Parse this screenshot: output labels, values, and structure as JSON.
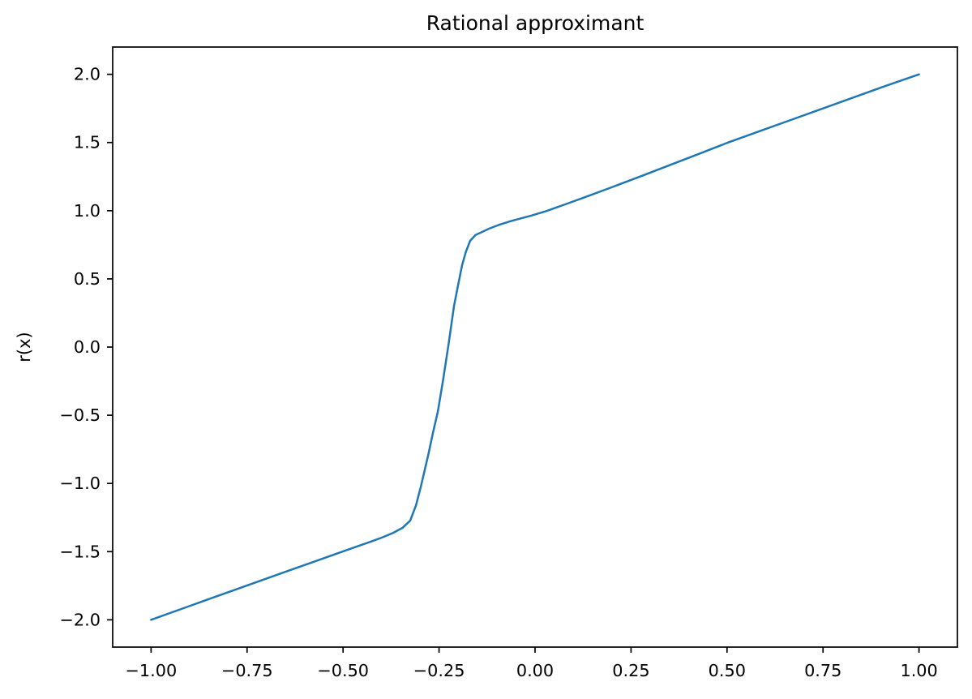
{
  "chart_data": {
    "type": "line",
    "title": "Rational approximant",
    "xlabel": "",
    "ylabel": "r(x)",
    "xlim": [
      -1.1,
      1.1
    ],
    "ylim": [
      -2.2,
      2.2
    ],
    "grid": false,
    "legend_position": "none",
    "line_color": "#1f77b4",
    "x_ticks": {
      "values": [
        -1.0,
        -0.75,
        -0.5,
        -0.25,
        0.0,
        0.25,
        0.5,
        0.75,
        1.0
      ],
      "labels": [
        "−1.00",
        "−0.75",
        "−0.50",
        "−0.25",
        "0.00",
        "0.25",
        "0.50",
        "0.75",
        "1.00"
      ]
    },
    "y_ticks": {
      "values": [
        2.0,
        1.5,
        1.0,
        0.5,
        0.0,
        -0.5,
        -1.0,
        -1.5,
        -2.0
      ],
      "labels": [
        "2.0",
        "1.5",
        "1.0",
        "0.5",
        "0.0",
        "−0.5",
        "−1.0",
        "−1.5",
        "−2.0"
      ]
    },
    "series": [
      {
        "name": "r(x)",
        "points": [
          [
            -1.0,
            -2.0
          ],
          [
            -0.9,
            -1.899
          ],
          [
            -0.8,
            -1.798
          ],
          [
            -0.7,
            -1.698
          ],
          [
            -0.64,
            -1.638
          ],
          [
            -0.58,
            -1.578
          ],
          [
            -0.52,
            -1.518
          ],
          [
            -0.47,
            -1.468
          ],
          [
            -0.43,
            -1.429
          ],
          [
            -0.4,
            -1.398
          ],
          [
            -0.37,
            -1.363
          ],
          [
            -0.345,
            -1.325
          ],
          [
            -0.325,
            -1.272
          ],
          [
            -0.31,
            -1.16
          ],
          [
            -0.298,
            -1.03
          ],
          [
            -0.288,
            -0.91
          ],
          [
            -0.278,
            -0.789
          ],
          [
            -0.266,
            -0.63
          ],
          [
            -0.253,
            -0.471
          ],
          [
            -0.246,
            -0.352
          ],
          [
            -0.239,
            -0.233
          ],
          [
            -0.232,
            -0.104
          ],
          [
            -0.225,
            0.025
          ],
          [
            -0.218,
            0.164
          ],
          [
            -0.211,
            0.302
          ],
          [
            -0.2,
            0.46
          ],
          [
            -0.19,
            0.6
          ],
          [
            -0.18,
            0.7
          ],
          [
            -0.169,
            0.779
          ],
          [
            -0.155,
            0.822
          ],
          [
            -0.141,
            0.84
          ],
          [
            -0.12,
            0.868
          ],
          [
            -0.095,
            0.895
          ],
          [
            -0.065,
            0.922
          ],
          [
            -0.035,
            0.945
          ],
          [
            -0.011,
            0.963
          ],
          [
            0.03,
            0.998
          ],
          [
            0.08,
            1.048
          ],
          [
            0.127,
            1.096
          ],
          [
            0.2,
            1.172
          ],
          [
            0.28,
            1.257
          ],
          [
            0.36,
            1.344
          ],
          [
            0.43,
            1.42
          ],
          [
            0.5,
            1.497
          ],
          [
            0.58,
            1.578
          ],
          [
            0.66,
            1.659
          ],
          [
            0.75,
            1.75
          ],
          [
            0.83,
            1.831
          ],
          [
            0.91,
            1.912
          ],
          [
            1.0,
            2.0
          ]
        ]
      }
    ]
  }
}
